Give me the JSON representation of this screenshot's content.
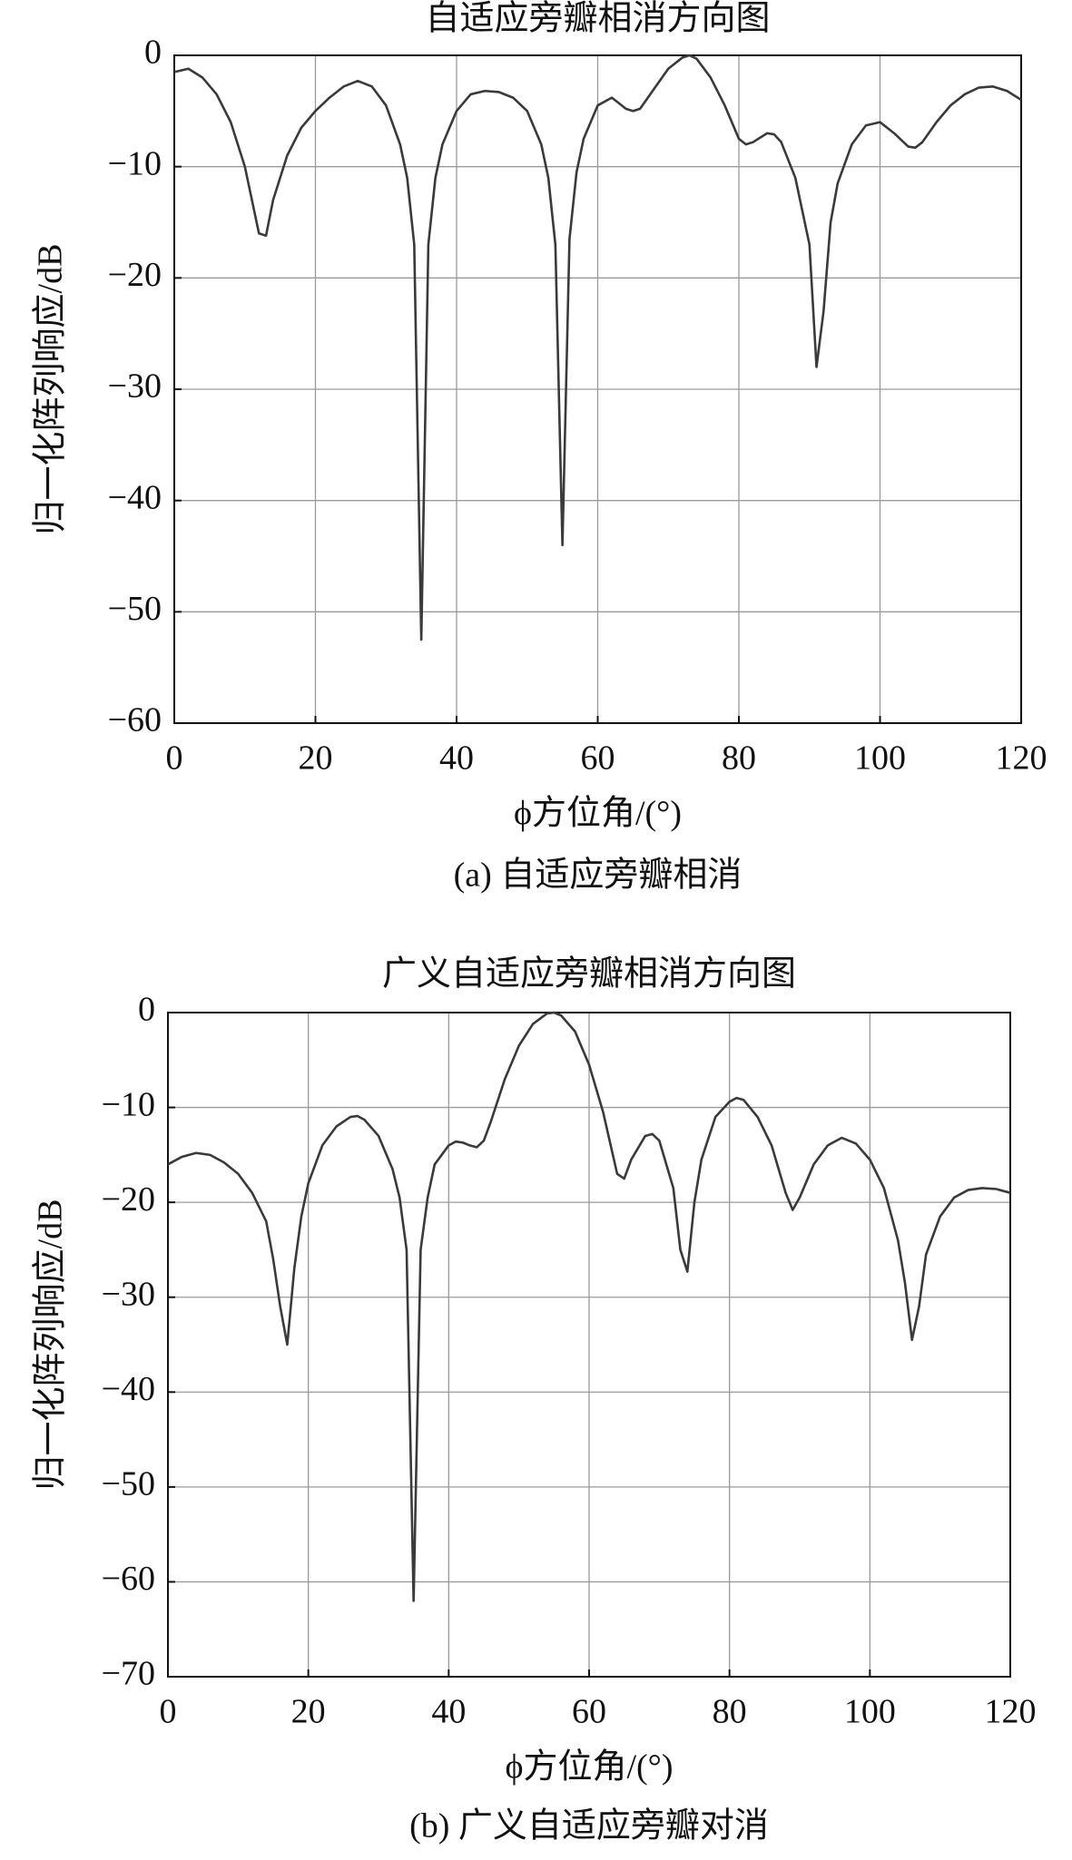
{
  "chart_data": [
    {
      "type": "line",
      "title": "自适应旁瓣相消方向图",
      "xlabel": "ϕ方位角/(°)",
      "ylabel": "归一化阵列响应/dB",
      "caption": "(a) 自适应旁瓣相消",
      "xlim": [
        0,
        120
      ],
      "ylim": [
        -60,
        0
      ],
      "xticks": [
        0,
        20,
        40,
        60,
        80,
        100,
        120
      ],
      "yticks": [
        {
          "value": -60,
          "label": "−60"
        },
        {
          "value": -50,
          "label": "−50"
        },
        {
          "value": -40,
          "label": "−40"
        },
        {
          "value": -30,
          "label": "−30"
        },
        {
          "value": -20,
          "label": "−20"
        },
        {
          "value": -10,
          "label": "−10"
        },
        0
      ],
      "grid": true,
      "series": [
        {
          "color": "#3a3a3a",
          "x": [
            0,
            2,
            4,
            6,
            8,
            10,
            12,
            13,
            14,
            16,
            18,
            20,
            22,
            24,
            26,
            28,
            30,
            32,
            33,
            34,
            35,
            36,
            37,
            38,
            40,
            42,
            44,
            46,
            48,
            50,
            52,
            53,
            54,
            55,
            56,
            57,
            58,
            60,
            62,
            64,
            65,
            66,
            68,
            70,
            72,
            73,
            74,
            76,
            78,
            80,
            81,
            82,
            84,
            85,
            86,
            88,
            90,
            91,
            92,
            93,
            94,
            96,
            98,
            100,
            102,
            104,
            105,
            106,
            108,
            110,
            112,
            114,
            116,
            118,
            120
          ],
          "values": [
            -1.5,
            -1.2,
            -2,
            -3.5,
            -6,
            -10,
            -16,
            -16.2,
            -13,
            -9,
            -6.5,
            -5,
            -3.8,
            -2.8,
            -2.3,
            -2.8,
            -4.5,
            -8,
            -11,
            -17,
            -52.5,
            -17,
            -11,
            -8,
            -5,
            -3.5,
            -3.2,
            -3.3,
            -3.8,
            -5,
            -8,
            -11,
            -17,
            -44,
            -16.5,
            -10.5,
            -7.5,
            -4.5,
            -3.8,
            -4.8,
            -5,
            -4.8,
            -3,
            -1.2,
            -0.2,
            0,
            -0.3,
            -2,
            -4.5,
            -7.5,
            -8,
            -7.8,
            -7,
            -7.1,
            -7.8,
            -11,
            -17,
            -28,
            -23,
            -15,
            -11.5,
            -8,
            -6.3,
            -6,
            -7,
            -8.2,
            -8.3,
            -7.8,
            -6,
            -4.5,
            -3.5,
            -2.9,
            -2.8,
            -3.2,
            -4
          ]
        }
      ]
    },
    {
      "type": "line",
      "title": "广义自适应旁瓣相消方向图",
      "xlabel": "ϕ方位角/(°)",
      "ylabel": "归一化阵列响应/dB",
      "caption": "(b) 广义自适应旁瓣对消",
      "xlim": [
        0,
        120
      ],
      "ylim": [
        -70,
        0
      ],
      "xticks": [
        0,
        20,
        40,
        60,
        80,
        100,
        120
      ],
      "yticks": [
        {
          "value": -70,
          "label": "−70"
        },
        {
          "value": -60,
          "label": "−60"
        },
        {
          "value": -50,
          "label": "−50"
        },
        {
          "value": -40,
          "label": "−40"
        },
        {
          "value": -30,
          "label": "−30"
        },
        {
          "value": -20,
          "label": "−20"
        },
        {
          "value": -10,
          "label": "−10"
        },
        0
      ],
      "grid": true,
      "series": [
        {
          "color": "#3a3a3a",
          "x": [
            0,
            2,
            4,
            6,
            8,
            10,
            12,
            14,
            15,
            16,
            17,
            18,
            19,
            20,
            22,
            24,
            26,
            27,
            28,
            30,
            32,
            33,
            34,
            35,
            36,
            37,
            38,
            40,
            41,
            42,
            43,
            44,
            45,
            46,
            48,
            50,
            52,
            54,
            55,
            56,
            58,
            60,
            62,
            64,
            65,
            66,
            68,
            69,
            70,
            72,
            73,
            74,
            75,
            76,
            78,
            80,
            81,
            82,
            84,
            86,
            88,
            89,
            90,
            92,
            94,
            96,
            98,
            100,
            102,
            104,
            105,
            106,
            107,
            108,
            110,
            112,
            114,
            116,
            118,
            120
          ],
          "values": [
            -16,
            -15.2,
            -14.8,
            -15,
            -15.8,
            -17,
            -19,
            -22,
            -26,
            -31,
            -35,
            -27,
            -21.5,
            -18,
            -14,
            -12,
            -11,
            -10.9,
            -11.3,
            -13,
            -16.5,
            -19.5,
            -25,
            -62,
            -25,
            -19.5,
            -16,
            -14,
            -13.6,
            -13.7,
            -14,
            -14.2,
            -13.5,
            -11.5,
            -7,
            -3.5,
            -1.2,
            -0.1,
            0,
            -0.3,
            -2,
            -5.5,
            -10.5,
            -17,
            -17.5,
            -15.5,
            -13,
            -12.8,
            -13.5,
            -18.5,
            -25,
            -27.3,
            -20,
            -15.5,
            -11,
            -9.4,
            -9,
            -9.2,
            -11,
            -14,
            -19,
            -20.8,
            -19.5,
            -16,
            -14,
            -13.2,
            -13.8,
            -15.5,
            -18.5,
            -24,
            -28.5,
            -34.5,
            -31,
            -25.5,
            -21.5,
            -19.5,
            -18.7,
            -18.5,
            -18.6,
            -19
          ]
        }
      ]
    }
  ]
}
